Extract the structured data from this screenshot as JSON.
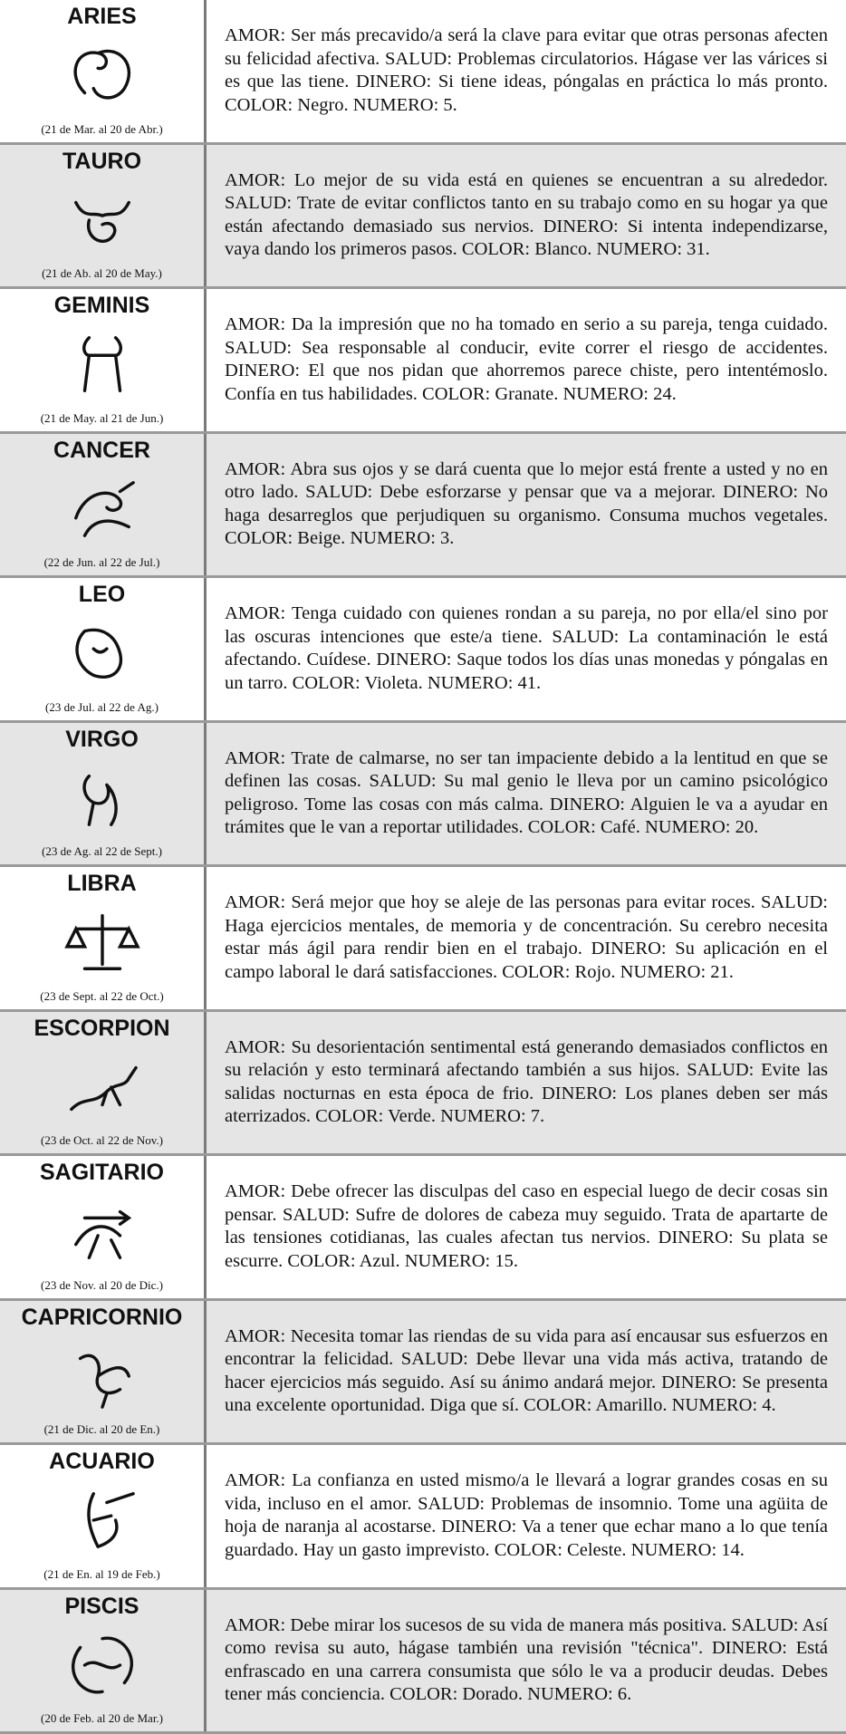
{
  "signs": [
    {
      "name": "ARIES",
      "dates": "(21 de Mar. al 20 de Abr.)",
      "text": "AMOR: Ser más precavido/a será la clave para evitar que otras personas afecten su felicidad afectiva. SALUD: Problemas circulatorios. Hágase ver las várices si es que las tiene. DINERO: Si tiene ideas, póngalas en práctica lo más pronto. COLOR: Negro. NUMERO: 5."
    },
    {
      "name": "TAURO",
      "dates": "(21 de Ab. al 20 de May.)",
      "text": "AMOR: Lo mejor de su vida está en quienes se encuentran a su alrededor. SALUD: Trate de evitar conflictos tanto en su trabajo como en su hogar ya que están afectando demasiado sus nervios. DINERO: Si intenta independizarse, vaya dando los primeros pasos. COLOR: Blanco. NUMERO: 31."
    },
    {
      "name": "GEMINIS",
      "dates": "(21 de May. al 21 de Jun.)",
      "text": "AMOR: Da la impresión que no ha tomado en serio a su pareja, tenga cuidado. SALUD: Sea responsable al conducir, evite correr el riesgo de accidentes. DINERO: El que nos pidan que ahorremos parece chiste, pero intentémoslo. Confía en tus habilidades. COLOR: Granate. NUMERO: 24."
    },
    {
      "name": "CANCER",
      "dates": "(22 de Jun. al 22 de Jul.)",
      "text": "AMOR: Abra sus ojos y se dará cuenta que lo mejor está frente a usted y no en otro lado. SALUD: Debe esforzarse y pensar que va a mejorar. DINERO: No haga desarreglos que perjudiquen su organismo. Consuma muchos vegetales. COLOR: Beige. NUMERO: 3."
    },
    {
      "name": "LEO",
      "dates": "(23 de Jul. al 22 de Ag.)",
      "text": "AMOR: Tenga cuidado con quienes rondan a su pareja, no por ella/el sino por las oscuras intenciones que este/a tiene. SALUD: La contaminación le está afectando. Cuídese. DINERO: Saque todos los días unas monedas y póngalas en un tarro. COLOR: Violeta. NUMERO: 41."
    },
    {
      "name": "VIRGO",
      "dates": "(23 de Ag. al 22 de Sept.)",
      "text": "AMOR: Trate de calmarse, no ser tan impaciente debido a la lentitud en que se definen las cosas. SALUD: Su mal genio le lleva por un camino psicológico peligroso. Tome las cosas con más calma. DINERO: Alguien le va a ayudar en trámites que le van a reportar utilidades. COLOR: Café. NUMERO: 20."
    },
    {
      "name": "LIBRA",
      "dates": "(23 de Sept. al 22 de Oct.)",
      "text": "AMOR: Será mejor que hoy se aleje de las personas para evitar roces. SALUD: Haga ejercicios mentales, de memoria y de concentración. Su cerebro necesita estar más ágil para rendir bien en el trabajo. DINERO: Su aplicación en el campo laboral le dará satisfacciones. COLOR: Rojo. NUMERO: 21."
    },
    {
      "name": "ESCORPION",
      "dates": "(23 de Oct. al 22 de Nov.)",
      "text": "AMOR: Su desorientación sentimental está generando demasiados conflictos en su relación y esto terminará afectando también a sus hijos. SALUD: Evite las salidas nocturnas en esta época de frio. DINERO: Los planes deben ser más aterrizados. COLOR: Verde. NUMERO: 7."
    },
    {
      "name": "SAGITARIO",
      "dates": "(23 de Nov. al 20 de Dic.)",
      "text": "AMOR: Debe ofrecer las disculpas del caso en especial luego de decir cosas sin pensar. SALUD: Sufre de dolores de cabeza muy seguido. Trata de apartarte de las tensiones cotidianas, las cuales afectan tus nervios. DINERO: Su plata se escurre. COLOR: Azul. NUMERO: 15."
    },
    {
      "name": "CAPRICORNIO",
      "dates": "(21 de Dic. al 20 de En.)",
      "text": "AMOR: Necesita tomar las riendas de su vida para así encausar sus esfuerzos en encontrar la felicidad. SALUD: Debe llevar una vida más activa, tratando de hacer ejercicios más seguido. Así su ánimo andará mejor. DINERO: Se presenta una excelente oportunidad. Diga que sí. COLOR: Amarillo. NUMERO: 4."
    },
    {
      "name": "ACUARIO",
      "dates": "(21 de En. al 19 de Feb.)",
      "text": "AMOR: La confianza en usted mismo/a le llevará a lograr grandes cosas en su vida, incluso en el amor. SALUD: Problemas de insomnio. Tome una agüita de hoja de naranja al acostarse. DINERO: Va a tener que echar mano a lo que tenía guardado. Hay un gasto imprevisto. COLOR: Celeste. NUMERO: 14."
    },
    {
      "name": "PISCIS",
      "dates": "(20 de Feb. al 20 de Mar.)",
      "text": "AMOR: Debe mirar los sucesos de su vida de manera más positiva. SALUD: Así como revisa su auto, hágase también una revisión \"técnica\". DINERO: Está enfrascado en una carrera consumista que sólo le va a producir deudas. Debes tener más conciencia. COLOR: Dorado. NUMERO: 6."
    }
  ]
}
